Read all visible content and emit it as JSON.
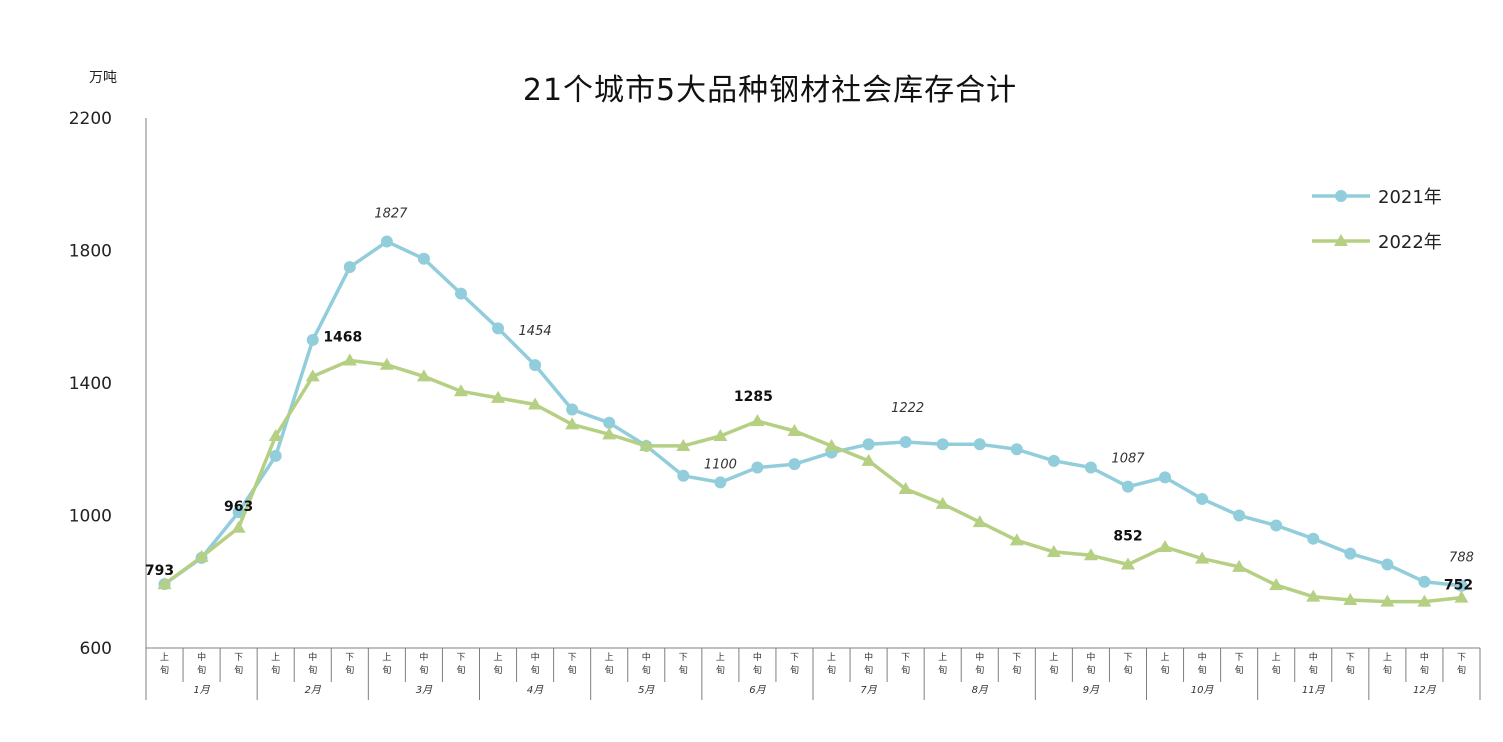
{
  "chart_data": {
    "type": "line",
    "title": "21个城市5大品种钢材社会库存合计",
    "unit_label": "万吨",
    "ylim": [
      600,
      2200
    ],
    "yticks": [
      600,
      1000,
      1400,
      1800,
      2200
    ],
    "x_sub_labels": [
      "上旬",
      "中旬",
      "下旬"
    ],
    "months": [
      "1月",
      "2月",
      "3月",
      "4月",
      "5月",
      "6月",
      "7月",
      "8月",
      "9月",
      "10月",
      "11月",
      "12月"
    ],
    "legend_position": "top-right",
    "series": [
      {
        "name": "2021年",
        "color": "#92CDDC",
        "marker": "circle",
        "values": [
          793,
          872,
          1010,
          1180,
          1530,
          1750,
          1827,
          1775,
          1670,
          1565,
          1454,
          1320,
          1280,
          1210,
          1120,
          1100,
          1145,
          1155,
          1190,
          1215,
          1222,
          1215,
          1215,
          1200,
          1165,
          1145,
          1087,
          1115,
          1050,
          1000,
          970,
          930,
          885,
          852,
          800,
          788
        ]
      },
      {
        "name": "2022年",
        "color": "#B5CF83",
        "marker": "triangle",
        "values": [
          793,
          875,
          963,
          1240,
          1420,
          1468,
          1455,
          1420,
          1375,
          1355,
          1335,
          1275,
          1245,
          1210,
          1210,
          1240,
          1285,
          1255,
          1210,
          1165,
          1080,
          1035,
          980,
          925,
          890,
          880,
          852,
          905,
          870,
          845,
          790,
          755,
          745,
          740,
          740,
          752
        ]
      }
    ],
    "annotations": [
      {
        "series": 0,
        "index": 6,
        "text": "1827",
        "style": "italic",
        "dx": 4,
        "dy": -24
      },
      {
        "series": 0,
        "index": 10,
        "text": "1454",
        "style": "italic",
        "dx": 0,
        "dy": -30
      },
      {
        "series": 0,
        "index": 15,
        "text": "1100",
        "style": "italic",
        "dx": 0,
        "dy": -14
      },
      {
        "series": 0,
        "index": 20,
        "text": "1222",
        "style": "italic",
        "dx": 2,
        "dy": -30
      },
      {
        "series": 0,
        "index": 26,
        "text": "1087",
        "style": "italic",
        "dx": 0,
        "dy": -24
      },
      {
        "series": 0,
        "index": 35,
        "text": "788",
        "style": "italic",
        "dx": 0,
        "dy": -24
      },
      {
        "series": 1,
        "index": 0,
        "text": "793",
        "style": "bold",
        "dx": -5,
        "dy": -9
      },
      {
        "series": 1,
        "index": 2,
        "text": "963",
        "style": "bold",
        "dx": 0,
        "dy": -17
      },
      {
        "series": 1,
        "index": 5,
        "text": "1468",
        "style": "bold",
        "dx": -7,
        "dy": -19
      },
      {
        "series": 1,
        "index": 16,
        "text": "1285",
        "style": "bold",
        "dx": -4,
        "dy": -20
      },
      {
        "series": 1,
        "index": 26,
        "text": "852",
        "style": "bold",
        "dx": 0,
        "dy": -24
      },
      {
        "series": 1,
        "index": 35,
        "text": "752",
        "style": "bold",
        "dx": -3,
        "dy": -8
      }
    ]
  }
}
